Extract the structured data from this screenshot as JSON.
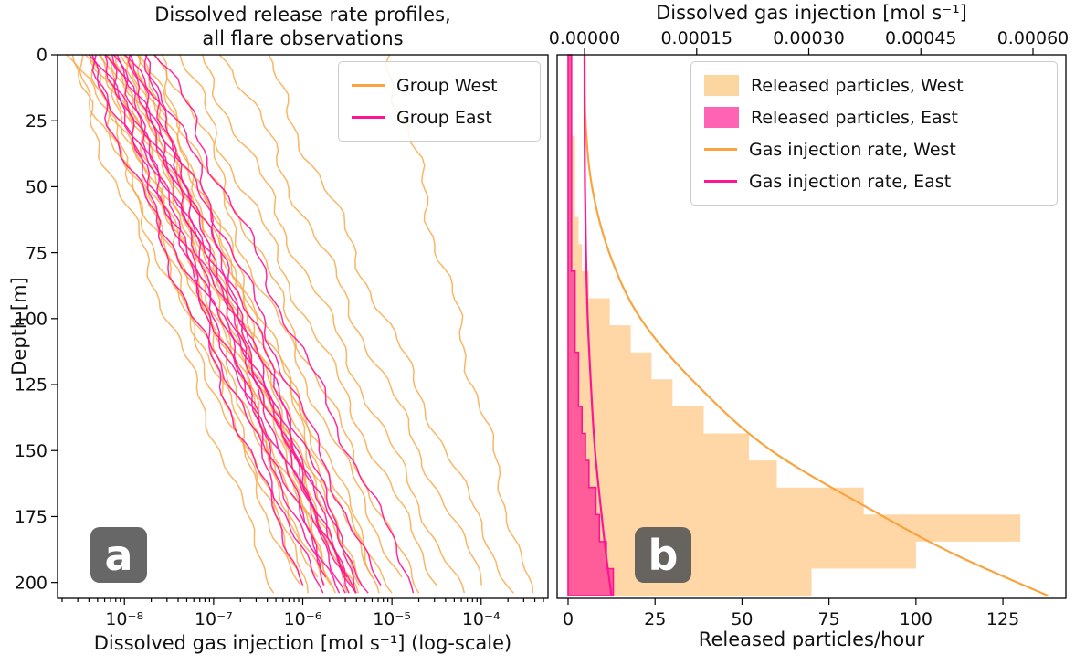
{
  "figure": {
    "background": "#ffffff",
    "panel_labels": {
      "a": "a",
      "b": "b"
    },
    "panel_label_bg": "#575757",
    "panel_label_fg": "#ffffff"
  },
  "chart_data": [
    {
      "id": "panel-a",
      "type": "line",
      "title_lines": [
        "Dissolved release rate profiles,",
        "all flare observations"
      ],
      "xlabel": "Dissolved gas injection [mol s⁻¹] (log-scale)",
      "ylabel": "Depth [m]",
      "x_scale": "log10",
      "xlim_log10": [
        -8.75,
        -3.25
      ],
      "xticks_log10": [
        -8,
        -7,
        -6,
        -5,
        -4
      ],
      "xtick_labels": [
        "10⁻⁸",
        "10⁻⁷",
        "10⁻⁶",
        "10⁻⁵",
        "10⁻⁴"
      ],
      "ylim": [
        0,
        206
      ],
      "yticks": [
        0,
        25,
        50,
        75,
        100,
        125,
        150,
        175,
        200
      ],
      "y_inverted_depth": true,
      "grid": false,
      "legend_position": "upper right",
      "legend": [
        {
          "label": "Group West",
          "kind": "line",
          "color": "#f9a43f"
        },
        {
          "label": "Group East",
          "kind": "line",
          "color": "#ff1493"
        }
      ],
      "series": [
        {
          "name": "Group West",
          "color": "#f9a43f",
          "opacity": 0.8,
          "profiles_log10_start_end_maxdepth": [
            [
              -8.65,
              -6.3,
              204
            ],
            [
              -8.55,
              -6.05,
              202
            ],
            [
              -8.5,
              -5.9,
              205
            ],
            [
              -8.45,
              -6.0,
              199
            ],
            [
              -8.4,
              -5.75,
              203
            ],
            [
              -8.35,
              -5.6,
              205
            ],
            [
              -8.3,
              -5.85,
              198
            ],
            [
              -8.25,
              -5.5,
              204
            ],
            [
              -8.2,
              -5.65,
              201
            ],
            [
              -8.15,
              -5.4,
              205
            ],
            [
              -8.1,
              -5.55,
              197
            ],
            [
              -8.05,
              -5.3,
              203
            ],
            [
              -8.0,
              -5.45,
              205
            ],
            [
              -7.95,
              -5.2,
              200
            ],
            [
              -7.9,
              -5.0,
              204
            ],
            [
              -7.85,
              -5.35,
              202
            ],
            [
              -7.8,
              -5.1,
              205
            ],
            [
              -7.7,
              -4.9,
              199
            ],
            [
              -7.55,
              -4.7,
              204
            ],
            [
              -7.4,
              -4.45,
              203
            ],
            [
              -7.15,
              -4.2,
              205
            ],
            [
              -6.85,
              -3.95,
              202
            ],
            [
              -6.45,
              -3.65,
              204
            ],
            [
              -5.05,
              -3.45,
              205
            ]
          ]
        },
        {
          "name": "Group East",
          "color": "#ff1493",
          "opacity": 0.9,
          "profiles_log10_start_end_maxdepth": [
            [
              -8.45,
              -5.95,
              203
            ],
            [
              -8.35,
              -5.8,
              205
            ],
            [
              -8.3,
              -5.7,
              200
            ],
            [
              -8.25,
              -5.6,
              204
            ],
            [
              -8.2,
              -5.75,
              202
            ],
            [
              -8.15,
              -5.5,
              205
            ],
            [
              -8.1,
              -5.55,
              198
            ],
            [
              -8.05,
              -5.45,
              204
            ],
            [
              -8.0,
              -5.4,
              205
            ],
            [
              -7.95,
              -5.5,
              201
            ],
            [
              -7.9,
              -5.35,
              204
            ],
            [
              -7.85,
              -5.28,
              205
            ],
            [
              -7.75,
              -5.15,
              202
            ],
            [
              -7.6,
              -4.7,
              205
            ]
          ]
        }
      ]
    },
    {
      "id": "panel-b",
      "type": "bar",
      "orientation": "horizontal",
      "xlabel_bottom": "Released particles/hour",
      "xlabel_top": "Dissolved gas injection [mol s⁻¹]",
      "ylim": [
        0,
        206
      ],
      "xlim_bottom": [
        -3.15,
        143.1
      ],
      "xticks_bottom": [
        0,
        25,
        50,
        75,
        100,
        125
      ],
      "xlim_top": [
        -3.67e-05,
        0.000644
      ],
      "xticks_top": [
        0,
        0.00015,
        0.0003,
        0.00045,
        0.0006
      ],
      "xtick_labels_top": [
        "0.00000",
        "0.00015",
        "0.00030",
        "0.00045",
        "0.00060"
      ],
      "bin_edges_depth_m": [
        0,
        10.25,
        20.5,
        30.75,
        41,
        51.25,
        61.5,
        71.75,
        82,
        92.25,
        102.5,
        112.75,
        123,
        133.25,
        143.5,
        153.75,
        164,
        174.25,
        184.5,
        194.75,
        205
      ],
      "histograms": [
        {
          "name": "Released particles, West",
          "fill": "#ffa33a",
          "opacity": 0.45,
          "values": [
            1,
            1,
            1,
            2,
            2,
            2,
            3,
            4,
            6,
            12,
            18,
            24,
            30,
            39,
            52,
            60,
            85,
            130,
            100,
            70
          ]
        },
        {
          "name": "Released particles, East",
          "fill": "#ff1493",
          "opacity": 0.62,
          "edge": "#ff1493",
          "values": [
            1,
            1,
            1,
            1,
            1,
            1,
            1,
            1,
            2,
            2,
            2,
            3,
            3,
            4,
            5,
            6,
            8,
            9,
            11,
            13
          ]
        }
      ],
      "curves": [
        {
          "name": "Gas injection rate, West",
          "color": "#f9a43f",
          "points_depth_value": [
            [
              0,
              0
            ],
            [
              25,
              1.3e-06
            ],
            [
              50,
              1e-05
            ],
            [
              75,
              3.3e-05
            ],
            [
              100,
              7.5e-05
            ],
            [
              125,
              0.00015
            ],
            [
              150,
              0.00025
            ],
            [
              175,
              0.0004
            ],
            [
              190,
              0.0005
            ],
            [
              205,
              0.00062
            ]
          ]
        },
        {
          "name": "Gas injection rate, East",
          "color": "#ff1493",
          "points_depth_value": [
            [
              0,
              0
            ],
            [
              25,
              1e-07
            ],
            [
              50,
              6e-07
            ],
            [
              75,
              1.9e-06
            ],
            [
              100,
              4.3e-06
            ],
            [
              125,
              8.5e-06
            ],
            [
              150,
              1.4e-05
            ],
            [
              175,
              2.3e-05
            ],
            [
              190,
              2.9e-05
            ],
            [
              205,
              3.6e-05
            ]
          ]
        }
      ],
      "legend_position": "upper right",
      "legend": [
        {
          "label": "Released particles, West",
          "kind": "patch",
          "color": "#fbd6a0"
        },
        {
          "label": "Released particles, East",
          "kind": "patch",
          "color": "#ff63b4"
        },
        {
          "label": "Gas injection rate, West",
          "kind": "line",
          "color": "#f9a43f"
        },
        {
          "label": "Gas injection rate, East",
          "kind": "line",
          "color": "#ff1493"
        }
      ]
    }
  ]
}
